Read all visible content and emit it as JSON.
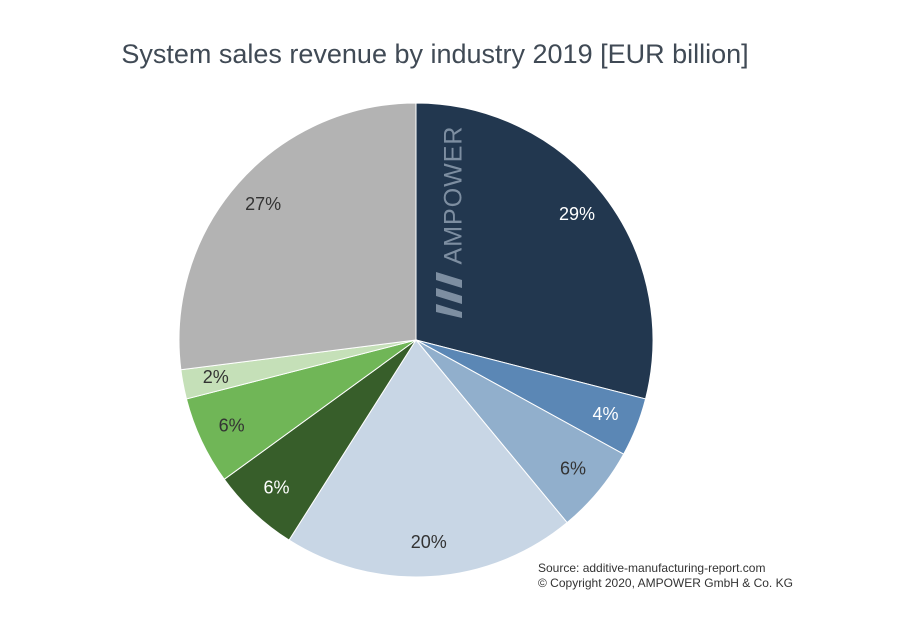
{
  "chart_data": {
    "type": "pie",
    "title": "System sales revenue by industry 2019 [EUR billion]",
    "values": [
      29,
      4,
      6,
      20,
      6,
      6,
      2,
      27
    ],
    "value_labels": [
      "29%",
      "4%",
      "6%",
      "20%",
      "6%",
      "6%",
      "2%",
      "27%"
    ],
    "colors": [
      "#22374f",
      "#5b87b5",
      "#91afcc",
      "#c8d6e5",
      "#375e2a",
      "#70b657",
      "#c5e0b8",
      "#b3b3b3"
    ],
    "watermark": "AMPOWER",
    "source": "Source: additive-manufacturing-report.com",
    "copyright": "© Copyright 2020, AMPOWER GmbH & Co. KG"
  }
}
